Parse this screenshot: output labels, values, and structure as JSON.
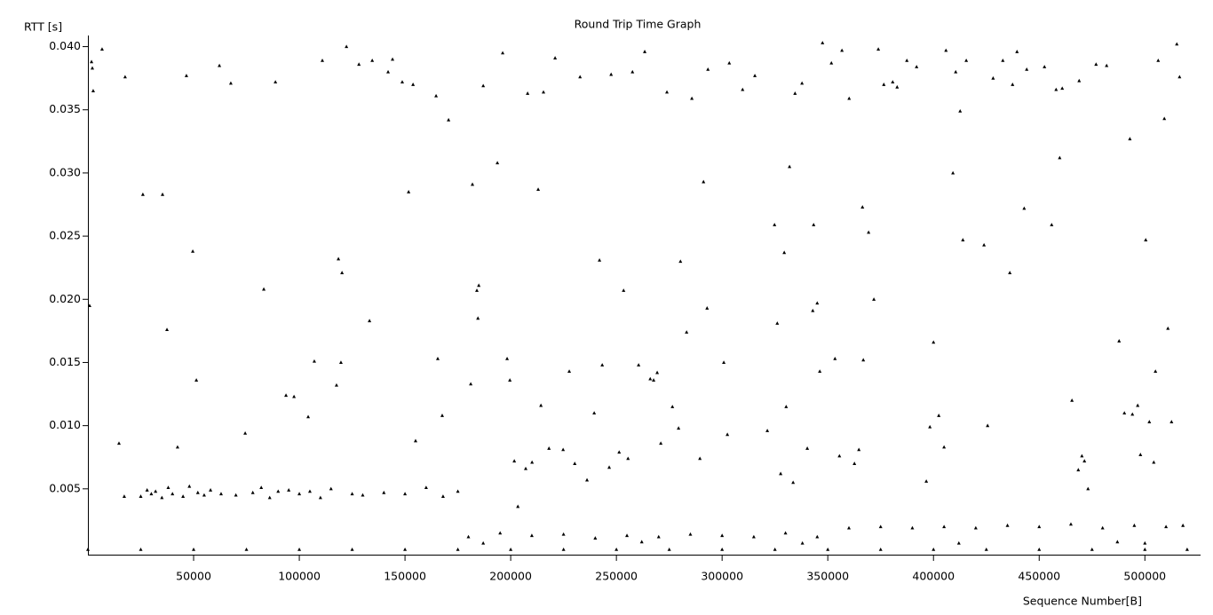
{
  "chart_data": {
    "type": "scatter",
    "title": "Round Trip Time Graph",
    "y_label": "RTT [s]",
    "x_label": "Sequence Number[B]",
    "color": "#000000",
    "xlim": [
      0,
      525500
    ],
    "ylim": [
      0,
      0.0406
    ],
    "xticks": [
      50000,
      100000,
      150000,
      200000,
      250000,
      300000,
      350000,
      400000,
      450000,
      500000
    ],
    "yticks": [
      0.005,
      {
        "value": 0.01,
        "label": "0.010"
      },
      0.015,
      {
        "value": 0.02,
        "label": "0.020"
      },
      0.025,
      {
        "value": 0.03,
        "label": "0.030"
      },
      0.035,
      {
        "value": 0.04,
        "label": "0.040"
      }
    ],
    "x": [
      1700,
      2100,
      2500,
      800,
      6700,
      17600,
      14700,
      17200,
      26000,
      35300,
      37400,
      42400,
      46600,
      49600,
      51300,
      62200,
      67600,
      74400,
      83200,
      88700,
      93700,
      97500,
      104200,
      107100,
      110900,
      117600,
      118500,
      120200,
      119700,
      122300,
      128200,
      133200,
      134500,
      142000,
      144100,
      148700,
      151700,
      153800,
      155000,
      164700,
      165500,
      167600,
      170600,
      184900,
      181900,
      184000,
      184500,
      181100,
      187000,
      193700,
      196200,
      198300,
      199600,
      201700,
      203400,
      207100,
      208000,
      210100,
      213000,
      214300,
      215500,
      218100,
      221000,
      224800,
      227700,
      230300,
      232800,
      236100,
      239500,
      242000,
      243300,
      246600,
      247500,
      251300,
      253400,
      255500,
      257600,
      260500,
      263400,
      266000,
      267600,
      269300,
      271000,
      273900,
      276500,
      279400,
      280300,
      283200,
      285700,
      289500,
      291200,
      292900,
      293300,
      300800,
      302500,
      303400,
      309700,
      315500,
      321400,
      324800,
      326100,
      327700,
      329400,
      330300,
      331900,
      333600,
      334500,
      337800,
      340300,
      342900,
      343300,
      345000,
      346200,
      347500,
      351700,
      353400,
      355500,
      356700,
      360100,
      362600,
      364700,
      366400,
      366800,
      369300,
      371800,
      373900,
      376500,
      380700,
      382800,
      387400,
      392000,
      396600,
      398300,
      400000,
      402500,
      405000,
      405900,
      409200,
      410500,
      412600,
      413900,
      415500,
      423900,
      425600,
      428200,
      432800,
      436100,
      437400,
      439500,
      442900,
      444100,
      452500,
      455900,
      458000,
      459700,
      460900,
      465500,
      468900,
      468500,
      470200,
      471400,
      473100,
      476900,
      481900,
      487800,
      490300,
      492900,
      494100,
      496600,
      497900,
      500400,
      502100,
      504200,
      505000,
      506300,
      509200,
      510900,
      512600,
      515100,
      516400,
      25000,
      28000,
      30000,
      32000,
      35000,
      38000,
      40000,
      45000,
      48000,
      52000,
      55000,
      58000,
      63000,
      70000,
      78000,
      82000,
      86000,
      90000,
      95000,
      100000,
      105000,
      110000,
      115000,
      125000,
      130000,
      140000,
      150000,
      160000,
      168000,
      175000,
      180000,
      195000,
      210000,
      225000,
      240000,
      255000,
      270000,
      285000,
      300000,
      315000,
      330000,
      345000,
      360000,
      375000,
      390000,
      405000,
      420000,
      435000,
      450000,
      465000,
      480000,
      495000,
      510000,
      518000,
      187000,
      262000,
      338000,
      412000,
      487000,
      500000,
      0,
      25000,
      50000,
      75000,
      100000,
      125000,
      150000,
      175000,
      200000,
      225000,
      250000,
      275000,
      300000,
      325000,
      350000,
      375000,
      400000,
      425000,
      450000,
      475000,
      500000,
      520000
    ],
    "values": [
      0.0388,
      0.0383,
      0.0365,
      0.0195,
      0.0398,
      0.0376,
      0.0086,
      0.0044,
      0.0283,
      0.0283,
      0.0176,
      0.0083,
      0.0377,
      0.0238,
      0.0136,
      0.0385,
      0.0371,
      0.0094,
      0.0208,
      0.0372,
      0.0124,
      0.0123,
      0.0107,
      0.0151,
      0.0389,
      0.0132,
      0.0232,
      0.0221,
      0.015,
      0.04,
      0.0386,
      0.0183,
      0.0389,
      0.038,
      0.039,
      0.0372,
      0.0285,
      0.037,
      0.0088,
      0.0361,
      0.0153,
      0.0108,
      0.0342,
      0.0211,
      0.0291,
      0.0207,
      0.0185,
      0.0133,
      0.0369,
      0.0308,
      0.0395,
      0.0153,
      0.0136,
      0.0072,
      0.0036,
      0.0066,
      0.0363,
      0.0071,
      0.0287,
      0.0116,
      0.0364,
      0.0082,
      0.0391,
      0.0081,
      0.0143,
      0.007,
      0.0376,
      0.0057,
      0.011,
      0.0231,
      0.0148,
      0.0067,
      0.0378,
      0.0079,
      0.0207,
      0.0074,
      0.038,
      0.0148,
      0.0396,
      0.0137,
      0.0136,
      0.0142,
      0.0086,
      0.0364,
      0.0115,
      0.0098,
      0.023,
      0.0174,
      0.0359,
      0.0074,
      0.0293,
      0.0193,
      0.0382,
      0.015,
      0.0093,
      0.0387,
      0.0366,
      0.0377,
      0.0096,
      0.0259,
      0.0181,
      0.0062,
      0.0237,
      0.0115,
      0.0305,
      0.0055,
      0.0363,
      0.0371,
      0.0082,
      0.0191,
      0.0259,
      0.0197,
      0.0143,
      0.0403,
      0.0387,
      0.0153,
      0.0076,
      0.0397,
      0.0359,
      0.007,
      0.0081,
      0.0273,
      0.0152,
      0.0253,
      0.02,
      0.0398,
      0.037,
      0.0372,
      0.0368,
      0.0389,
      0.0384,
      0.0056,
      0.0099,
      0.0166,
      0.0108,
      0.0083,
      0.0397,
      0.03,
      0.038,
      0.0349,
      0.0247,
      0.0389,
      0.0243,
      0.01,
      0.0375,
      0.0389,
      0.0221,
      0.037,
      0.0396,
      0.0272,
      0.0382,
      0.0384,
      0.0259,
      0.0366,
      0.0312,
      0.0367,
      0.012,
      0.0373,
      0.0065,
      0.0076,
      0.0072,
      0.005,
      0.0386,
      0.0385,
      0.0167,
      0.011,
      0.0327,
      0.0109,
      0.0116,
      0.0077,
      0.0247,
      0.0103,
      0.0071,
      0.0143,
      0.0389,
      0.0343,
      0.0177,
      0.0103,
      0.0402,
      0.0376,
      0.0044,
      0.0049,
      0.0046,
      0.0048,
      0.0043,
      0.0051,
      0.0046,
      0.0044,
      0.0052,
      0.0047,
      0.0045,
      0.0049,
      0.0046,
      0.0045,
      0.0047,
      0.0051,
      0.0043,
      0.0048,
      0.0049,
      0.0046,
      0.0048,
      0.0043,
      0.005,
      0.0046,
      0.0045,
      0.0047,
      0.0046,
      0.0051,
      0.0044,
      0.0048,
      0.0012,
      0.0015,
      0.0013,
      0.0014,
      0.0011,
      0.0013,
      0.0012,
      0.0014,
      0.0013,
      0.0012,
      0.0015,
      0.0012,
      0.0019,
      0.002,
      0.0019,
      0.002,
      0.0019,
      0.0021,
      0.002,
      0.0022,
      0.0019,
      0.0021,
      0.002,
      0.0021,
      0.0007,
      0.0008,
      0.0007,
      0.0007,
      0.0008,
      0.0007,
      0.0002,
      0.0002,
      0.0002,
      0.0002,
      0.0002,
      0.0002,
      0.0002,
      0.0002,
      0.0002,
      0.0002,
      0.0002,
      0.0002,
      0.0002,
      0.0002,
      0.0002,
      0.0002,
      0.0002,
      0.0002,
      0.0002,
      0.0002,
      0.0002,
      0.0002
    ]
  }
}
